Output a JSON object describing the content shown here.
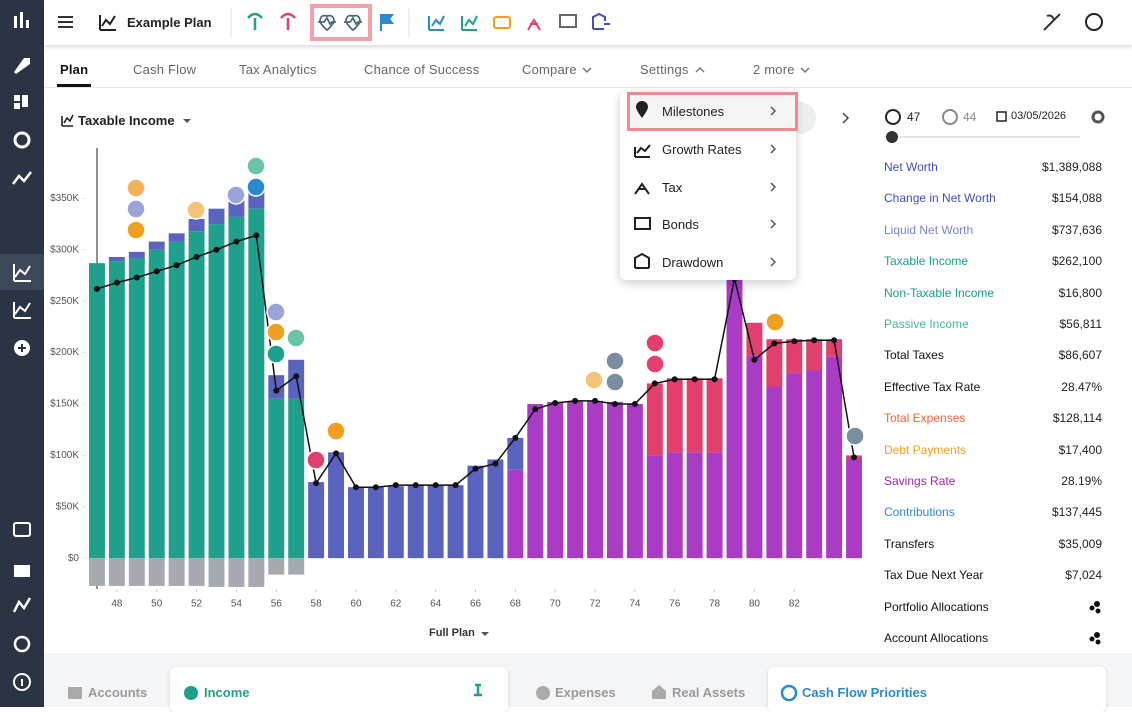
{
  "header": {
    "title": "Example Plan"
  },
  "tabs": [
    "Plan",
    "Cash Flow",
    "Tax Analytics",
    "Chance of Success",
    "Compare",
    "Settings",
    "2 more"
  ],
  "chart_selector": "Taxable Income",
  "range_selector": "Full Plan",
  "settings_menu": [
    "Milestones",
    "Growth Rates",
    "Tax",
    "Bonds",
    "Drawdown"
  ],
  "summary": {
    "age": 47,
    "spouse_age": 44,
    "date": "03/05/2026",
    "rows": [
      {
        "label": "Net Worth",
        "value": "$1,389,088",
        "color": "#3f51b5"
      },
      {
        "label": "Change in Net Worth",
        "value": "$154,088",
        "color": "#3f51b5"
      },
      {
        "label": "Liquid Net Worth",
        "value": "$737,636",
        "color": "#7986cb"
      },
      {
        "label": "Taxable Income",
        "value": "$262,100",
        "color": "#1a9e8a"
      },
      {
        "label": "Non-Taxable Income",
        "value": "$16,800",
        "color": "#1a9e8a"
      },
      {
        "label": "Passive Income",
        "value": "$56,811",
        "color": "#3cb89e"
      },
      {
        "label": "Total Taxes",
        "value": "$86,607",
        "color": "#111111"
      },
      {
        "label": "Effective Tax Rate",
        "value": "28.47%",
        "color": "#111111"
      },
      {
        "label": "Total Expenses",
        "value": "$128,114",
        "color": "#f0643c"
      },
      {
        "label": "Debt Payments",
        "value": "$17,400",
        "color": "#f0a020"
      },
      {
        "label": "Savings Rate",
        "value": "28.19%",
        "color": "#9c27b0"
      },
      {
        "label": "Contributions",
        "value": "$137,445",
        "color": "#2a8ad0"
      },
      {
        "label": "Transfers",
        "value": "$35,009",
        "color": "#111111"
      },
      {
        "label": "Tax Due Next Year",
        "value": "$7,024",
        "color": "#111111"
      },
      {
        "label": "Portfolio Allocations",
        "color": "#111111"
      },
      {
        "label": "Account Allocations",
        "color": "#111111"
      }
    ]
  },
  "bottom_tabs": [
    "Accounts",
    "Income",
    "Expenses",
    "Real Assets",
    "Cash Flow Priorities"
  ],
  "chart_data": {
    "type": "bar",
    "stacked": true,
    "x": [
      47,
      48,
      49,
      50,
      51,
      52,
      53,
      54,
      55,
      56,
      57,
      58,
      59,
      60,
      61,
      62,
      63,
      64,
      65,
      66,
      67,
      68,
      69,
      70,
      71,
      72,
      73,
      74,
      75,
      76,
      77,
      78,
      79,
      80,
      81,
      82,
      83,
      84,
      85
    ],
    "xlim": [
      46.5,
      85.5
    ],
    "xticks": [
      48,
      50,
      52,
      54,
      56,
      58,
      60,
      62,
      64,
      66,
      68,
      70,
      72,
      74,
      76,
      78,
      80,
      82
    ],
    "ylim": [
      -30000,
      400000
    ],
    "yticks": [
      {
        "value": 0,
        "label": "$0"
      },
      {
        "value": 50000,
        "label": "$50K"
      },
      {
        "value": 100000,
        "label": "$100K"
      },
      {
        "value": 150000,
        "label": "$150K"
      },
      {
        "value": 200000,
        "label": "$200K"
      },
      {
        "value": 250000,
        "label": "$250K"
      },
      {
        "value": 300000,
        "label": "$300K"
      },
      {
        "value": 350000,
        "label": "$350K"
      }
    ],
    "series": [
      {
        "color": "#1fa08c",
        "values": [
          287000,
          289000,
          292000,
          300000,
          308000,
          318000,
          325000,
          332000,
          340000,
          155000,
          155000,
          0,
          0,
          0,
          0,
          0,
          0,
          0,
          0,
          0,
          0,
          0,
          0,
          0,
          0,
          0,
          0,
          0,
          0,
          0,
          0,
          0,
          0,
          0,
          0,
          0,
          0,
          0,
          0
        ]
      },
      {
        "color": "#a93bc4",
        "values": [
          0,
          0,
          0,
          0,
          0,
          0,
          0,
          0,
          0,
          0,
          0,
          0,
          0,
          0,
          0,
          0,
          0,
          0,
          0,
          0,
          0,
          86000,
          150000,
          152000,
          153000,
          153000,
          152000,
          150000,
          100000,
          103000,
          103000,
          103000,
          275000,
          197000,
          167000,
          180000,
          183000,
          196000,
          97000
        ]
      },
      {
        "color": "#5a63bd",
        "values": [
          0,
          4000,
          6000,
          8000,
          8000,
          12000,
          15000,
          18000,
          20000,
          23000,
          38000,
          74000,
          103000,
          69000,
          69000,
          70000,
          71000,
          71000,
          71000,
          90000,
          96000,
          31000,
          0,
          0,
          0,
          0,
          0,
          0,
          0,
          0,
          0,
          0,
          0,
          0,
          0,
          0,
          0,
          0,
          0
        ]
      },
      {
        "color": "#e23f6e",
        "values": [
          0,
          0,
          0,
          0,
          0,
          0,
          0,
          0,
          0,
          0,
          0,
          0,
          0,
          0,
          0,
          0,
          0,
          0,
          0,
          0,
          0,
          0,
          0,
          0,
          0,
          0,
          0,
          0,
          70000,
          72000,
          72000,
          72000,
          0,
          32000,
          46000,
          33000,
          30000,
          17000,
          3000
        ]
      },
      {
        "color": "#a4aab0",
        "values": [
          -27000,
          -27000,
          -27000,
          -27000,
          -27000,
          -27000,
          -28000,
          -28000,
          -28000,
          -16000,
          -16000,
          0,
          0,
          0,
          0,
          0,
          0,
          0,
          0,
          0,
          0,
          0,
          0,
          0,
          0,
          0,
          0,
          0,
          0,
          0,
          0,
          0,
          0,
          0,
          0,
          0,
          0,
          0,
          0
        ]
      },
      {
        "type": "line",
        "color": "#111111",
        "values": [
          262000,
          268000,
          273000,
          279000,
          285000,
          293000,
          300000,
          308000,
          314000,
          163000,
          177000,
          73000,
          102000,
          69000,
          69000,
          71000,
          71000,
          71000,
          71000,
          87000,
          92000,
          117000,
          145000,
          151000,
          153000,
          153000,
          150000,
          150000,
          170000,
          174000,
          174000,
          174000,
          272000,
          193000,
          209000,
          211000,
          212000,
          212000,
          98000
        ]
      }
    ]
  }
}
